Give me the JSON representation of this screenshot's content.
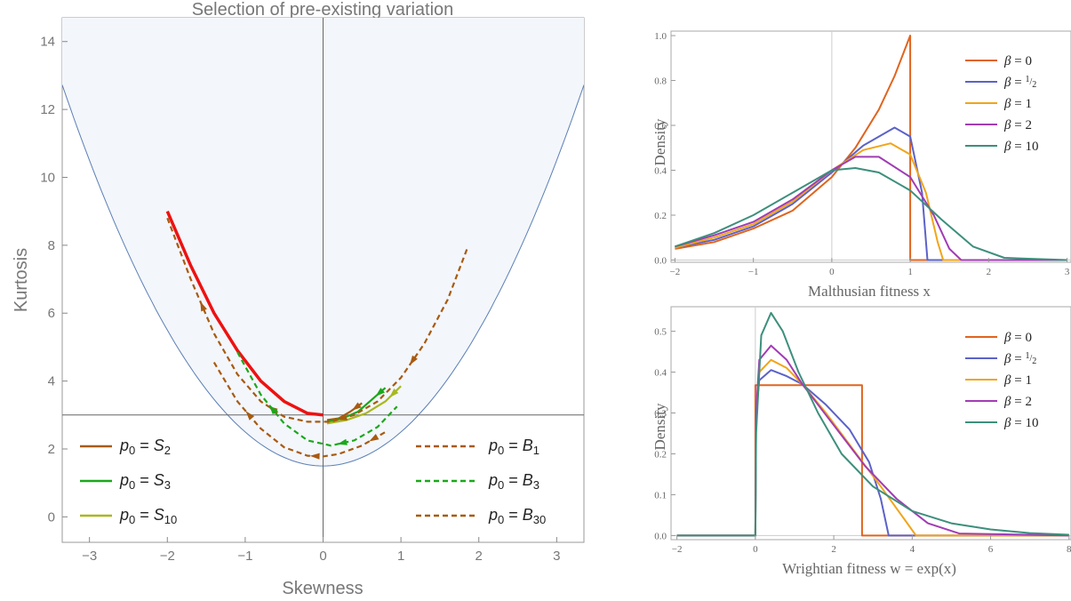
{
  "chart_data": [
    {
      "type": "line",
      "title": "Selection of pre-existing variation",
      "xlabel": "Skewness",
      "ylabel": "Kurtosis",
      "xlim": [
        -3.35,
        3.35
      ],
      "ylim": [
        -0.75,
        14.7
      ],
      "xticks": [
        -3,
        -2,
        -1,
        0,
        1,
        2,
        3
      ],
      "yticks": [
        0,
        2,
        4,
        6,
        8,
        10,
        12,
        14
      ],
      "grid": false,
      "colors": {
        "shade": "#f3f6fb",
        "boundary": "#5b7fb5",
        "red": "#ee1111",
        "brown": "#a85a10",
        "green": "#1aa81a",
        "olive": "#a8b81e"
      },
      "boundary": {
        "x": [
          -3.35,
          0,
          3.35
        ],
        "formula": "kurtosis = skewness^2 + 1.5"
      },
      "reference_lines": {
        "x": 0,
        "y": 3
      },
      "series": [
        {
          "name": "S_2",
          "color": "#ee1111",
          "dash": false,
          "x": [
            -2.0,
            -1.7,
            -1.4,
            -1.1,
            -0.8,
            -0.5,
            -0.2,
            0.0
          ],
          "y": [
            9.0,
            7.4,
            6.0,
            4.9,
            4.0,
            3.4,
            3.05,
            3.0
          ]
        },
        {
          "name": "S_2",
          "color": "#a85a10",
          "dash": false,
          "x": [
            0.05,
            0.2,
            0.35,
            0.5
          ],
          "y": [
            2.85,
            2.9,
            3.1,
            3.35
          ]
        },
        {
          "name": "S_3",
          "color": "#1aa81a",
          "dash": false,
          "x": [
            0.05,
            0.25,
            0.45,
            0.65,
            0.8
          ],
          "y": [
            2.8,
            2.9,
            3.1,
            3.5,
            3.8
          ]
        },
        {
          "name": "S_10",
          "color": "#a8b81e",
          "dash": false,
          "x": [
            0.05,
            0.3,
            0.55,
            0.8,
            1.0
          ],
          "y": [
            2.75,
            2.85,
            3.05,
            3.4,
            3.85
          ]
        },
        {
          "name": "B_1",
          "color": "#a85a10",
          "dash": true,
          "x": [
            -2.0,
            -1.7,
            -1.4,
            -1.1,
            -0.8,
            -0.5,
            -0.2,
            0.1,
            0.4,
            0.7,
            1.0,
            1.3,
            1.6,
            1.85
          ],
          "y": [
            8.8,
            7.0,
            5.4,
            4.2,
            3.4,
            2.95,
            2.8,
            2.8,
            3.0,
            3.4,
            4.1,
            5.1,
            6.4,
            7.9
          ]
        },
        {
          "name": "B_30",
          "color": "#a85a10",
          "dash": true,
          "x": [
            -1.4,
            -1.1,
            -0.8,
            -0.5,
            -0.2,
            0.0,
            0.2,
            0.5,
            0.8
          ],
          "y": [
            4.55,
            3.4,
            2.6,
            2.05,
            1.8,
            1.78,
            1.85,
            2.1,
            2.5
          ]
        },
        {
          "name": "B_3",
          "color": "#1aa81a",
          "dash": true,
          "x": [
            -1.1,
            -0.8,
            -0.5,
            -0.2,
            0.1,
            0.4,
            0.7,
            0.95
          ],
          "y": [
            4.85,
            3.6,
            2.75,
            2.25,
            2.1,
            2.25,
            2.65,
            3.25
          ]
        }
      ],
      "legend_left": [
        {
          "label": "p0 = S2",
          "color": "#a85a10",
          "dash": false
        },
        {
          "label": "p0 = S3",
          "color": "#1aa81a",
          "dash": false
        },
        {
          "label": "p0 = S10",
          "color": "#a8b81e",
          "dash": false
        }
      ],
      "legend_right": [
        {
          "label": "p0 = B1",
          "color": "#a85a10",
          "dash": true
        },
        {
          "label": "p0 = B3",
          "color": "#1aa81a",
          "dash": true
        },
        {
          "label": "p0 = B30",
          "color": "#a85a10",
          "dash": true
        }
      ],
      "legend_placement": "bottom-left and bottom-right"
    },
    {
      "type": "line",
      "title": "",
      "xlabel": "Malthusian fitness x",
      "ylabel": "Density",
      "xlim": [
        -2.05,
        3.05
      ],
      "ylim": [
        -0.01,
        1.02
      ],
      "xticks": [
        -2,
        -1,
        0,
        1,
        2,
        3
      ],
      "yticks": [
        "0.0",
        "0.2",
        "0.4",
        "0.6",
        "0.8",
        "1.0"
      ],
      "grid": false,
      "reference_lines": {
        "x": 0
      },
      "series": [
        {
          "name": "β = 0",
          "color": "#e0641f",
          "x": [
            -2.0,
            -1.5,
            -1.0,
            -0.5,
            0.0,
            0.3,
            0.6,
            0.8,
            1.0,
            1.0,
            3.0
          ],
          "y": [
            0.05,
            0.08,
            0.14,
            0.22,
            0.37,
            0.5,
            0.67,
            0.82,
            1.0,
            0.0,
            0.0
          ]
        },
        {
          "name": "β = 1/2",
          "color": "#5b62c8",
          "x": [
            -2.0,
            -1.5,
            -1.0,
            -0.5,
            0.0,
            0.4,
            0.8,
            1.0,
            1.15,
            1.22,
            3.0
          ],
          "y": [
            0.055,
            0.09,
            0.15,
            0.25,
            0.39,
            0.51,
            0.59,
            0.55,
            0.3,
            0.0,
            0.0
          ]
        },
        {
          "name": "β = 1",
          "color": "#f0a51a",
          "x": [
            -2.0,
            -1.5,
            -1.0,
            -0.5,
            0.0,
            0.4,
            0.75,
            1.0,
            1.2,
            1.35,
            1.42,
            3.0
          ],
          "y": [
            0.055,
            0.1,
            0.16,
            0.26,
            0.4,
            0.49,
            0.52,
            0.47,
            0.3,
            0.08,
            0.0,
            0.0
          ]
        },
        {
          "name": "β = 2",
          "color": "#a13cb4",
          "x": [
            -2.0,
            -1.5,
            -1.0,
            -0.5,
            0.0,
            0.3,
            0.6,
            1.0,
            1.3,
            1.5,
            1.65,
            3.0
          ],
          "y": [
            0.06,
            0.11,
            0.17,
            0.27,
            0.4,
            0.46,
            0.46,
            0.37,
            0.2,
            0.05,
            0.0,
            0.0
          ]
        },
        {
          "name": "β = 10",
          "color": "#3d8f7c",
          "x": [
            -2.0,
            -1.5,
            -1.0,
            -0.5,
            0.0,
            0.3,
            0.6,
            1.0,
            1.4,
            1.8,
            2.2,
            3.0
          ],
          "y": [
            0.06,
            0.12,
            0.2,
            0.3,
            0.4,
            0.41,
            0.39,
            0.31,
            0.18,
            0.06,
            0.01,
            0.0
          ]
        }
      ],
      "legend": [
        {
          "label": "β = 0",
          "color": "#e0641f"
        },
        {
          "label": "β = 1/2",
          "color": "#5b62c8"
        },
        {
          "label": "β = 1",
          "color": "#f0a51a"
        },
        {
          "label": "β = 2",
          "color": "#a13cb4"
        },
        {
          "label": "β = 10",
          "color": "#3d8f7c"
        }
      ],
      "legend_placement": "top-right"
    },
    {
      "type": "line",
      "title": "",
      "xlabel": "Wrightian fitness w = exp(x)",
      "ylabel": "Density",
      "xlim": [
        -2.15,
        8.05
      ],
      "ylim": [
        -0.01,
        0.56
      ],
      "xticks": [
        -2,
        0,
        2,
        4,
        6,
        8
      ],
      "yticks": [
        "0.0",
        "0.1",
        "0.2",
        "0.3",
        "0.4",
        "0.5"
      ],
      "grid": false,
      "reference_lines": {
        "x": 0
      },
      "series": [
        {
          "name": "β = 0",
          "color": "#e0641f",
          "x": [
            -2.0,
            0.0,
            0.0,
            2.72,
            2.72,
            8.0
          ],
          "y": [
            0.0,
            0.0,
            0.368,
            0.368,
            0.0,
            0.0
          ]
        },
        {
          "name": "β = 1/2",
          "color": "#5b62c8",
          "x": [
            -2.0,
            0.0,
            0.02,
            0.1,
            0.4,
            0.8,
            1.2,
            1.8,
            2.4,
            2.9,
            3.2,
            3.4,
            8.0
          ],
          "y": [
            0.0,
            0.0,
            0.3,
            0.38,
            0.405,
            0.39,
            0.37,
            0.32,
            0.26,
            0.18,
            0.09,
            0.0,
            0.0
          ]
        },
        {
          "name": "β = 1",
          "color": "#f0a51a",
          "x": [
            -2.0,
            0.0,
            0.02,
            0.1,
            0.4,
            0.8,
            1.2,
            1.8,
            2.5,
            3.2,
            3.8,
            4.1,
            8.0
          ],
          "y": [
            0.0,
            0.0,
            0.3,
            0.4,
            0.43,
            0.41,
            0.37,
            0.3,
            0.21,
            0.12,
            0.04,
            0.0,
            0.0
          ]
        },
        {
          "name": "β = 2",
          "color": "#a13cb4",
          "x": [
            -2.0,
            0.0,
            0.02,
            0.1,
            0.4,
            0.8,
            1.2,
            2.0,
            2.8,
            3.6,
            4.4,
            5.2,
            8.0
          ],
          "y": [
            0.0,
            0.0,
            0.3,
            0.43,
            0.465,
            0.43,
            0.37,
            0.27,
            0.17,
            0.09,
            0.03,
            0.005,
            0.0
          ]
        },
        {
          "name": "β = 10",
          "color": "#3d8f7c",
          "x": [
            -2.0,
            0.0,
            0.02,
            0.15,
            0.4,
            0.7,
            1.1,
            1.6,
            2.2,
            3.0,
            4.0,
            5.0,
            6.0,
            7.0,
            8.0
          ],
          "y": [
            0.0,
            0.0,
            0.25,
            0.49,
            0.545,
            0.5,
            0.4,
            0.3,
            0.2,
            0.12,
            0.06,
            0.03,
            0.015,
            0.006,
            0.002
          ]
        }
      ],
      "legend": [
        {
          "label": "β = 0",
          "color": "#e0641f"
        },
        {
          "label": "β = 1/2",
          "color": "#5b62c8"
        },
        {
          "label": "β = 1",
          "color": "#f0a51a"
        },
        {
          "label": "β = 2",
          "color": "#a13cb4"
        },
        {
          "label": "β = 10",
          "color": "#3d8f7c"
        }
      ],
      "legend_placement": "top-right"
    }
  ]
}
